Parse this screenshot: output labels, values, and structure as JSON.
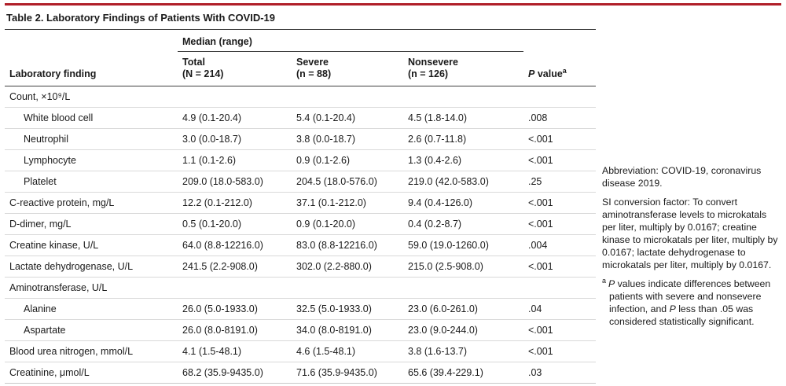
{
  "colors": {
    "accent": "#b01e28",
    "rule_dark": "#3f3f3f",
    "rule_light": "#d9d9d9"
  },
  "table": {
    "title": "Table 2. Laboratory Findings of Patients With COVID-19",
    "spanner": "Median (range)",
    "header": {
      "finding": "Laboratory finding",
      "total": [
        "Total",
        "(N = 214)"
      ],
      "severe": [
        "Severe",
        "(n = 88)"
      ],
      "nonsevere": [
        "Nonsevere",
        "(n = 126)"
      ],
      "p_italic": "P",
      "p_rest": " value",
      "p_sup": "a"
    },
    "rows": [
      {
        "label": "Count, ×10⁹/L",
        "total": "",
        "severe": "",
        "nonsevere": "",
        "p": ""
      },
      {
        "label": "White blood cell",
        "total": "4.9 (0.1-20.4)",
        "severe": "5.4 (0.1-20.4)",
        "nonsevere": "4.5 (1.8-14.0)",
        "p": ".008"
      },
      {
        "label": "Neutrophil",
        "total": "3.0 (0.0-18.7)",
        "severe": "3.8 (0.0-18.7)",
        "nonsevere": "2.6 (0.7-11.8)",
        "p": "<.001"
      },
      {
        "label": "Lymphocyte",
        "total": "1.1 (0.1-2.6)",
        "severe": "0.9 (0.1-2.6)",
        "nonsevere": "1.3 (0.4-2.6)",
        "p": "<.001"
      },
      {
        "label": "Platelet",
        "total": "209.0 (18.0-583.0)",
        "severe": "204.5 (18.0-576.0)",
        "nonsevere": "219.0 (42.0-583.0)",
        "p": ".25"
      },
      {
        "label": "C-reactive protein, mg/L",
        "total": "12.2 (0.1-212.0)",
        "severe": "37.1 (0.1-212.0)",
        "nonsevere": "9.4 (0.4-126.0)",
        "p": "<.001"
      },
      {
        "label": "D-dimer, mg/L",
        "total": "0.5 (0.1-20.0)",
        "severe": "0.9 (0.1-20.0)",
        "nonsevere": "0.4 (0.2-8.7)",
        "p": "<.001"
      },
      {
        "label": "Creatine kinase, U/L",
        "total": "64.0 (8.8-12216.0)",
        "severe": "83.0 (8.8-12216.0)",
        "nonsevere": "59.0 (19.0-1260.0)",
        "p": ".004"
      },
      {
        "label": "Lactate dehydrogenase, U/L",
        "total": "241.5 (2.2-908.0)",
        "severe": "302.0 (2.2-880.0)",
        "nonsevere": "215.0 (2.5-908.0)",
        "p": "<.001"
      },
      {
        "label": "Aminotransferase, U/L",
        "total": "",
        "severe": "",
        "nonsevere": "",
        "p": ""
      },
      {
        "label": "Alanine",
        "total": "26.0 (5.0-1933.0)",
        "severe": "32.5 (5.0-1933.0)",
        "nonsevere": "23.0 (6.0-261.0)",
        "p": ".04"
      },
      {
        "label": "Aspartate",
        "total": "26.0 (8.0-8191.0)",
        "severe": "34.0 (8.0-8191.0)",
        "nonsevere": "23.0 (9.0-244.0)",
        "p": "<.001"
      },
      {
        "label": "Blood urea nitrogen, mmol/L",
        "total": "4.1 (1.5-48.1)",
        "severe": "4.6 (1.5-48.1)",
        "nonsevere": "3.8 (1.6-13.7)",
        "p": "<.001"
      },
      {
        "label": "Creatinine, μmol/L",
        "total": "68.2 (35.9-9435.0)",
        "severe": "71.6 (35.9-9435.0)",
        "nonsevere": "65.6 (39.4-229.1)",
        "p": ".03"
      }
    ]
  },
  "notes": {
    "abbreviation": "Abbreviation: COVID-19, coronavirus disease 2019.",
    "si": "SI conversion factor: To convert aminotransferase levels to microkatals per liter, multiply by 0.0167; creatine kinase to microkatals per liter, multiply by 0.0167; lactate dehydrogenase to microkatals per liter, multiply by 0.0167.",
    "fn_a": {
      "marker": "a",
      "p1": "P",
      "t1": " values indicate differences between patients with severe and nonsevere infection, and ",
      "p2": "P",
      "t2": " less than .05 was considered statistically significant."
    }
  }
}
